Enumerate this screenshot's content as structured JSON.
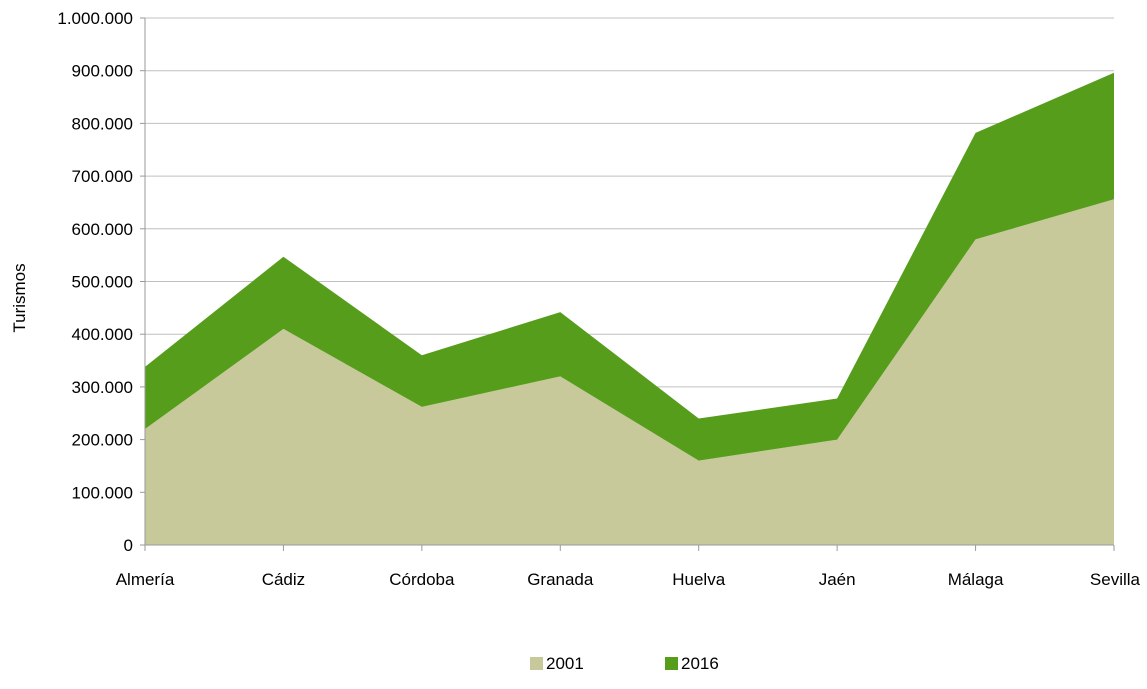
{
  "chart_data": {
    "type": "area",
    "stacked": true,
    "categories": [
      "Almería",
      "Cádiz",
      "Córdoba",
      "Granada",
      "Huelva",
      "Jaén",
      "Málaga",
      "Sevilla"
    ],
    "series": [
      {
        "name": "2001",
        "color": "#c8c99a",
        "values": [
          220000,
          410000,
          262000,
          320000,
          160000,
          200000,
          580000,
          656000
        ]
      },
      {
        "name": "2016",
        "color": "#579d1c",
        "values": [
          118000,
          137000,
          98000,
          122000,
          80000,
          78000,
          202000,
          240000
        ]
      }
    ],
    "ylabel": "Turismos",
    "xlabel": "",
    "ylim": [
      0,
      1000000
    ],
    "ytick_step": 100000,
    "yticks": [
      "0",
      "100.000",
      "200.000",
      "300.000",
      "400.000",
      "500.000",
      "600.000",
      "700.000",
      "800.000",
      "900.000",
      "1.000.000"
    ],
    "grid": true,
    "legend_position": "bottom"
  }
}
